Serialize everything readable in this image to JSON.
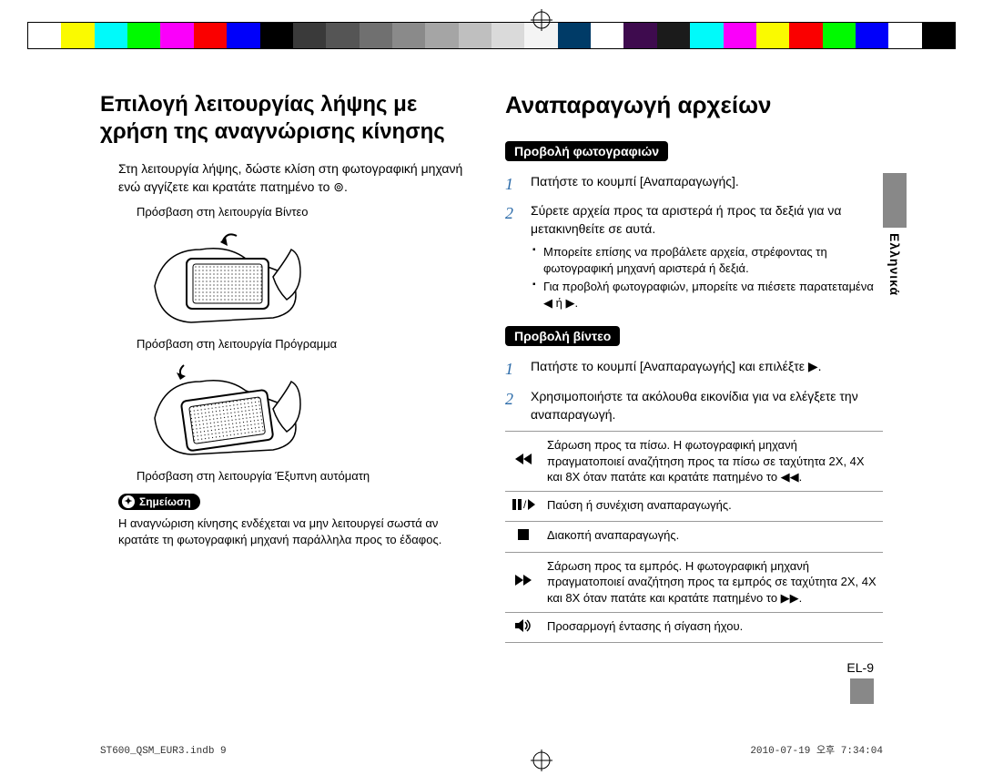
{
  "color_bar": {
    "colors": [
      "#ffffff",
      "#fafa00",
      "#00fafa",
      "#00fa00",
      "#fa00fa",
      "#fa0000",
      "#0000fa",
      "#000000",
      "#3a3a3a",
      "#555555",
      "#707070",
      "#8a8a8a",
      "#a5a5a5",
      "#bfbfbf",
      "#dadada",
      "#f4f4f4",
      "#003b67",
      "#ffffff",
      "#3e0b4e",
      "#1b1b1b",
      "#00fafa",
      "#fa00fa",
      "#fafa00",
      "#fa0000",
      "#00fa00",
      "#0000fa",
      "#ffffff",
      "#000000"
    ]
  },
  "left": {
    "heading": "Επιλογή λειτουργίας λήψης με χρήση της αναγνώρισης κίνησης",
    "intro": "Στη λειτουργία λήψης, δώστε κλίση στη φωτογραφική μηχανή ενώ αγγίζετε και κρατάτε πατημένο το ⊚.",
    "caption1": "Πρόσβαση στη λειτουργία Βίντεο",
    "caption2": "Πρόσβαση στη λειτουργία Πρόγραμμα",
    "caption3": "Πρόσβαση στη λειτουργία Έξυπνη αυτόματη",
    "note_label": "Σημείωση",
    "note_text": "Η αναγνώριση κίνησης ενδέχεται να μην λειτουργεί σωστά αν κρατάτε τη φωτογραφική μηχανή παράλληλα προς το έδαφος."
  },
  "right": {
    "heading": "Αναπαραγωγή αρχείων",
    "section1": "Προβολή φωτογραφιών",
    "step1_1": "Πατήστε το κουμπί [Αναπαραγωγής].",
    "step1_2": "Σύρετε αρχεία προς τα αριστερά ή προς τα δεξιά για να μετακινηθείτε σε αυτά.",
    "bullets1": [
      "Μπορείτε επίσης να προβάλετε αρχεία, στρέφοντας τη φωτογραφική μηχανή αριστερά ή δεξιά.",
      "Για προβολή φωτογραφιών, μπορείτε να πιέσετε παρατεταμένα ◀ ή ▶."
    ],
    "section2": "Προβολή βίντεο",
    "step2_1": "Πατήστε το κουμπί [Αναπαραγωγής] και επιλέξτε ▶.",
    "step2_2": "Χρησιμοποιήστε τα ακόλουθα εικονίδια για να ελέγξετε την αναπαραγωγή.",
    "table": [
      {
        "icon": "rewind",
        "text": "Σάρωση προς τα πίσω. Η φωτογραφική μηχανή πραγματοποιεί αναζήτηση προς τα πίσω σε ταχύτητα 2X, 4X και 8X όταν πατάτε και κρατάτε πατημένο το ◀◀."
      },
      {
        "icon": "pauseplay",
        "text": "Παύση ή συνέχιση αναπαραγωγής."
      },
      {
        "icon": "stop",
        "text": "Διακοπή αναπαραγωγής."
      },
      {
        "icon": "forward",
        "text": "Σάρωση προς τα εμπρός. Η φωτογραφική μηχανή πραγματοποιεί αναζήτηση προς τα εμπρός σε ταχύτητα 2X, 4X και 8X όταν πατάτε και κρατάτε πατημένο το ▶▶."
      },
      {
        "icon": "volume",
        "text": "Προσαρμογή έντασης ή σίγαση ήχου."
      }
    ]
  },
  "side_lang": "Ελληνικά",
  "page_number": "EL-9",
  "footer_left": "ST600_QSM_EUR3.indb   9",
  "footer_right": "2010-07-19   오후 7:34:04"
}
